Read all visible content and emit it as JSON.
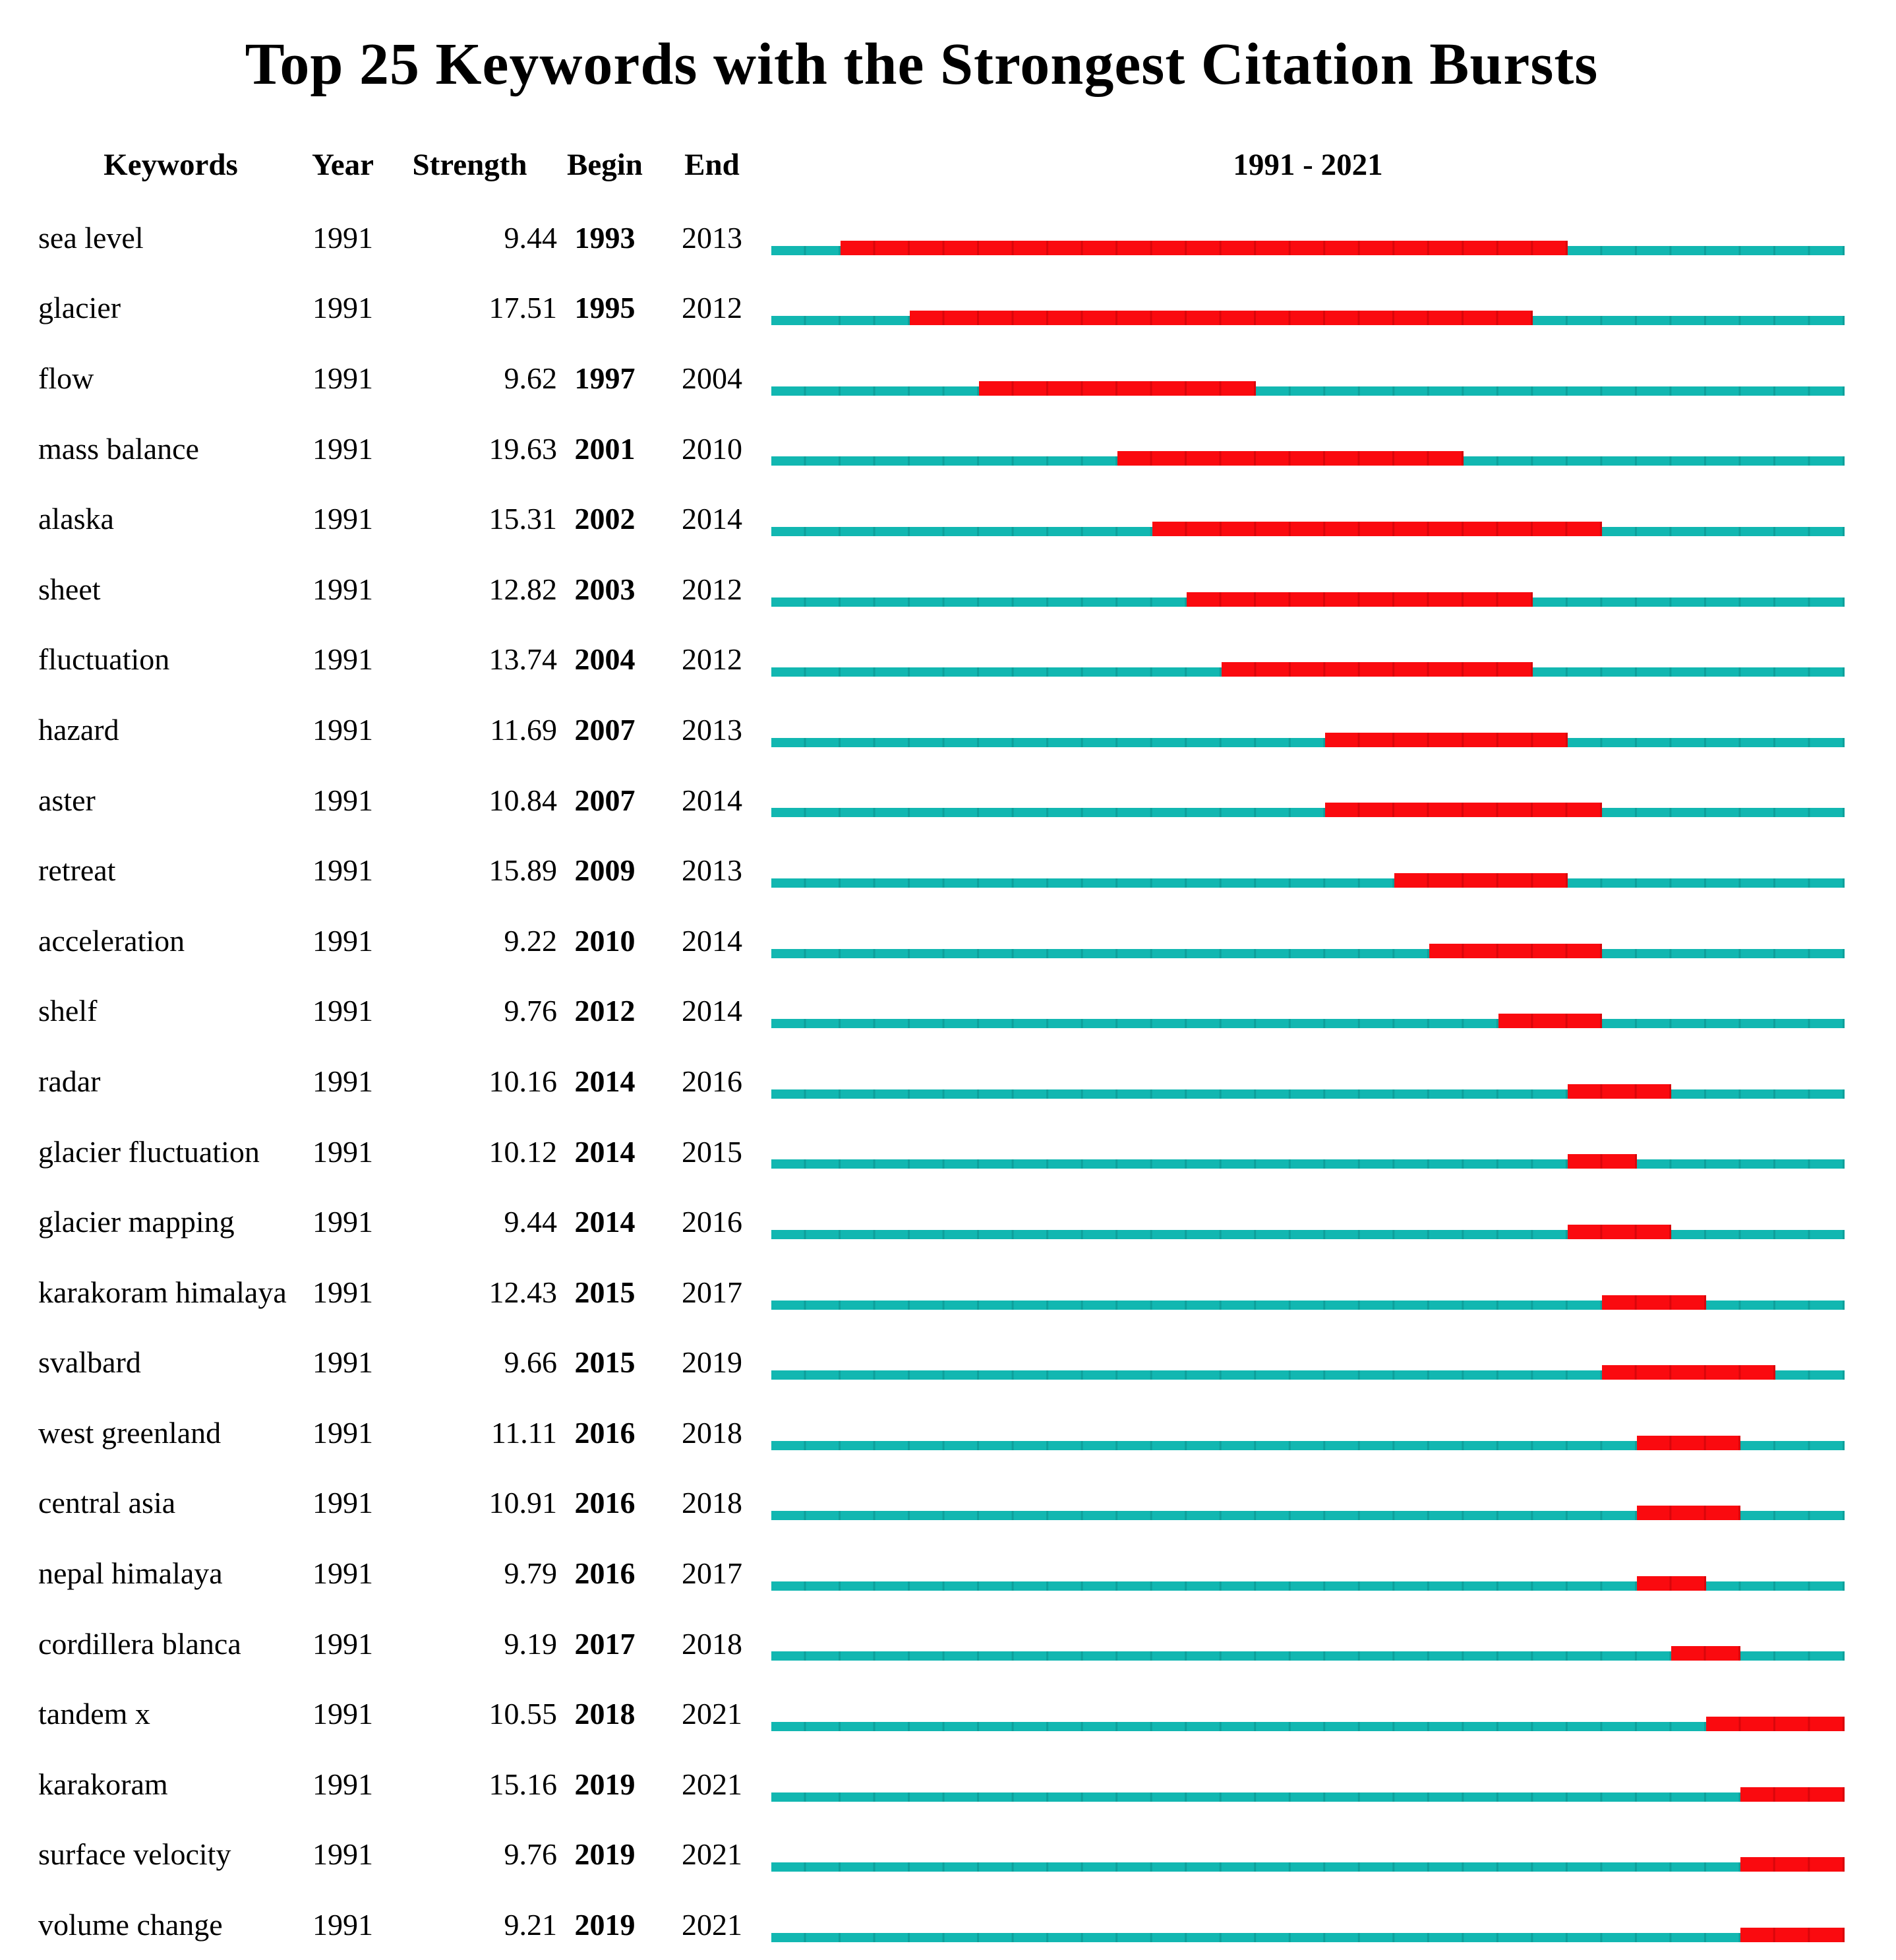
{
  "title": "Top 25 Keywords with the Strongest Citation Bursts",
  "header": {
    "keywords": "Keywords",
    "year": "Year",
    "strength": "Strength",
    "begin": "Begin",
    "end": "End",
    "period": "1991 - 2021"
  },
  "colors": {
    "timeline_line": "#12B7B1",
    "timeline_tick": "#0EA09B",
    "burst_bar": "#FA0A0F",
    "burst_tick": "#D9060B",
    "text": "#000000",
    "background": "#FFFFFF"
  },
  "chart_data": {
    "type": "bar",
    "subtype": "citation-burst-timeline",
    "title": "Top 25 Keywords with the Strongest Citation Bursts",
    "x_axis": {
      "label": "1991 - 2021",
      "min_year": 1991,
      "max_year": 2021
    },
    "legend": {
      "timeline_color_meaning": "full period 1991-2021",
      "burst_color_meaning": "citation burst duration"
    },
    "columns": [
      "Keywords",
      "Year",
      "Strength",
      "Begin",
      "End"
    ],
    "rows": [
      {
        "keyword": "sea level",
        "year": 1991,
        "strength": "9.44",
        "begin": 1993,
        "end": 2013
      },
      {
        "keyword": "glacier",
        "year": 1991,
        "strength": "17.51",
        "begin": 1995,
        "end": 2012
      },
      {
        "keyword": "flow",
        "year": 1991,
        "strength": "9.62",
        "begin": 1997,
        "end": 2004
      },
      {
        "keyword": "mass balance",
        "year": 1991,
        "strength": "19.63",
        "begin": 2001,
        "end": 2010
      },
      {
        "keyword": "alaska",
        "year": 1991,
        "strength": "15.31",
        "begin": 2002,
        "end": 2014
      },
      {
        "keyword": "sheet",
        "year": 1991,
        "strength": "12.82",
        "begin": 2003,
        "end": 2012
      },
      {
        "keyword": "fluctuation",
        "year": 1991,
        "strength": "13.74",
        "begin": 2004,
        "end": 2012
      },
      {
        "keyword": "hazard",
        "year": 1991,
        "strength": "11.69",
        "begin": 2007,
        "end": 2013
      },
      {
        "keyword": "aster",
        "year": 1991,
        "strength": "10.84",
        "begin": 2007,
        "end": 2014
      },
      {
        "keyword": "retreat",
        "year": 1991,
        "strength": "15.89",
        "begin": 2009,
        "end": 2013
      },
      {
        "keyword": "acceleration",
        "year": 1991,
        "strength": "9.22",
        "begin": 2010,
        "end": 2014
      },
      {
        "keyword": "shelf",
        "year": 1991,
        "strength": "9.76",
        "begin": 2012,
        "end": 2014
      },
      {
        "keyword": "radar",
        "year": 1991,
        "strength": "10.16",
        "begin": 2014,
        "end": 2016
      },
      {
        "keyword": "glacier fluctuation",
        "year": 1991,
        "strength": "10.12",
        "begin": 2014,
        "end": 2015
      },
      {
        "keyword": "glacier mapping",
        "year": 1991,
        "strength": "9.44",
        "begin": 2014,
        "end": 2016
      },
      {
        "keyword": "karakoram himalaya",
        "year": 1991,
        "strength": "12.43",
        "begin": 2015,
        "end": 2017
      },
      {
        "keyword": "svalbard",
        "year": 1991,
        "strength": "9.66",
        "begin": 2015,
        "end": 2019
      },
      {
        "keyword": "west greenland",
        "year": 1991,
        "strength": "11.11",
        "begin": 2016,
        "end": 2018
      },
      {
        "keyword": "central asia",
        "year": 1991,
        "strength": "10.91",
        "begin": 2016,
        "end": 2018
      },
      {
        "keyword": "nepal himalaya",
        "year": 1991,
        "strength": "9.79",
        "begin": 2016,
        "end": 2017
      },
      {
        "keyword": "cordillera blanca",
        "year": 1991,
        "strength": "9.19",
        "begin": 2017,
        "end": 2018
      },
      {
        "keyword": "tandem x",
        "year": 1991,
        "strength": "10.55",
        "begin": 2018,
        "end": 2021
      },
      {
        "keyword": "karakoram",
        "year": 1991,
        "strength": "15.16",
        "begin": 2019,
        "end": 2021
      },
      {
        "keyword": "surface velocity",
        "year": 1991,
        "strength": "9.76",
        "begin": 2019,
        "end": 2021
      },
      {
        "keyword": "volume change",
        "year": 1991,
        "strength": "9.21",
        "begin": 2019,
        "end": 2021
      }
    ]
  }
}
